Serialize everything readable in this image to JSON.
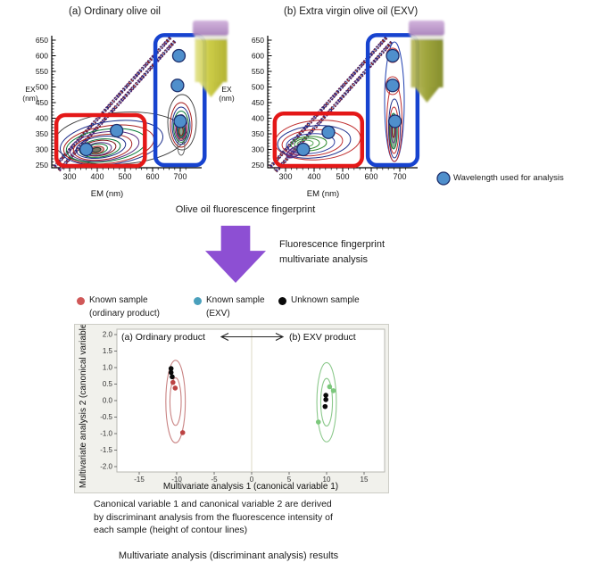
{
  "colors": {
    "region_red": "#e41818",
    "region_blue": "#1743cf",
    "analysis_marker_fill": "#4f8fcc",
    "analysis_marker_stroke": "#1c2e6b",
    "arrow_purple": "#8d4fd3",
    "known_ordinary_marker": "#bc4343",
    "known_ordinary_legend": "#d05858",
    "known_exv_marker": "#7cc87c",
    "known_exv_legend": "#4aa0bc",
    "unknown_marker": "#0a0a0a",
    "ellipse_ordinary": "#c98383",
    "ellipse_exv": "#8cc98c"
  },
  "top_figure": {
    "caption": "Olive oil fluorescence fingerprint",
    "wavelength_legend": "Wavelength used for analysis"
  },
  "process_arrow": {
    "label_lines": [
      "Fluorescence fingerprint",
      "multivariate analysis"
    ]
  },
  "captions": {
    "discriminant_note_lines": [
      "Canonical variable 1 and canonical variable 2 are derived",
      "by discriminant analysis from the fluorescence intensity of",
      "each sample (height of contour lines)"
    ],
    "result_caption": "Multivariate analysis (discriminant analysis) results"
  },
  "chart_data": [
    {
      "type": "heatmap",
      "subtype": "excitation-emission contour map",
      "title": "(a) Ordinary olive oil",
      "xlabel": "EM (nm)",
      "ylabel": [
        "EX",
        "(nm)"
      ],
      "xticks": [
        300,
        400,
        500,
        600,
        700
      ],
      "yticks": [
        650,
        600,
        550,
        500,
        450,
        400,
        350,
        300,
        250
      ],
      "xlim": [
        250,
        730
      ],
      "ylim": [
        250,
        665
      ],
      "diagonal_feature": "Rayleigh scatter line (EM = EX)",
      "analysis_points_nm": [
        [
          695,
          600
        ],
        [
          690,
          505
        ],
        [
          700,
          390
        ],
        [
          470,
          360
        ],
        [
          360,
          300
        ]
      ],
      "contour_features": [
        {
          "name": "low-wavelength-peak",
          "em_center": 420,
          "ex_center": 310,
          "em_range": [
            270,
            600
          ],
          "ex_range": [
            250,
            420
          ]
        },
        {
          "name": "chlorophyll-emission-peak",
          "em_center": 700,
          "ex_center": 385,
          "em_range": [
            640,
            710
          ],
          "ex_range": [
            300,
            470
          ]
        }
      ],
      "regions": [
        {
          "name": "low-wavelength-region",
          "color": "#e41818",
          "em": [
            252,
            572
          ],
          "ex": [
            247,
            410
          ]
        },
        {
          "name": "chlorophyll-region",
          "color": "#1743cf",
          "em": [
            610,
            788
          ],
          "ex": [
            250,
            666
          ]
        }
      ]
    },
    {
      "type": "heatmap",
      "subtype": "excitation-emission contour map",
      "title": "(b) Extra virgin olive oil (EXV)",
      "xlabel": "EM (nm)",
      "ylabel": [
        "EX",
        "(nm)"
      ],
      "xticks": [
        300,
        400,
        500,
        600,
        700
      ],
      "yticks": [
        650,
        600,
        550,
        500,
        450,
        400,
        350,
        300,
        250
      ],
      "xlim": [
        250,
        730
      ],
      "ylim": [
        250,
        665
      ],
      "diagonal_feature": "Rayleigh scatter line (EM = EX)",
      "analysis_points_nm": [
        [
          675,
          600
        ],
        [
          675,
          505
        ],
        [
          683,
          390
        ],
        [
          450,
          355
        ],
        [
          362,
          300
        ]
      ],
      "contour_features": [
        {
          "name": "low-wavelength-peak",
          "em_center": 395,
          "ex_center": 318,
          "em_range": [
            280,
            610
          ],
          "ex_range": [
            250,
            405
          ]
        },
        {
          "name": "chlorophyll-emission-peak",
          "em_center": 678,
          "ex_center": 360,
          "em_range": [
            640,
            700
          ],
          "ex_range": [
            250,
            645
          ]
        }
      ],
      "regions": [
        {
          "name": "low-wavelength-region",
          "color": "#e41818",
          "em": [
            262,
            568
          ],
          "ex": [
            247,
            415
          ]
        },
        {
          "name": "chlorophyll-region",
          "color": "#1743cf",
          "em": [
            588,
            762
          ],
          "ex": [
            250,
            666
          ]
        }
      ]
    },
    {
      "type": "scatter",
      "annotation_left": "(a) Ordinary product",
      "annotation_right": "(b) EXV product",
      "xlabel": "Multivariate analysis 1 (canonical variable 1)",
      "ylabel": "Multivariate analysis 2 (canonical variable 2)",
      "xticks": [
        -15,
        -10,
        -5,
        0,
        5,
        10,
        15
      ],
      "yticks": [
        2.0,
        1.5,
        1.0,
        0.5,
        0.0,
        -0.5,
        -1.0,
        -1.5,
        -2.0
      ],
      "xlim": [
        -17.8,
        17.8
      ],
      "ylim": [
        -2.2,
        2.2
      ],
      "legend": [
        {
          "label_lines": [
            "Known sample",
            "(ordinary product)"
          ],
          "color": "#d05858"
        },
        {
          "label_lines": [
            "Known sample",
            "(EXV)"
          ],
          "color": "#4aa0bc"
        },
        {
          "label_lines": [
            "Unknown sample"
          ],
          "color": "#0a0a0a"
        }
      ],
      "series": [
        {
          "name": "Known sample (ordinary product)",
          "color": "#bc4343",
          "points": [
            [
              -10.5,
              0.55
            ],
            [
              -10.2,
              0.38
            ],
            [
              -9.2,
              -0.97
            ]
          ]
        },
        {
          "name": "Known sample (EXV)",
          "color": "#7cc87c",
          "points": [
            [
              10.4,
              0.42
            ],
            [
              10.9,
              0.3
            ],
            [
              8.9,
              -0.65
            ]
          ]
        },
        {
          "name": "Unknown sample",
          "color": "#0a0a0a",
          "points": [
            [
              -10.75,
              0.97
            ],
            [
              -10.75,
              0.85
            ],
            [
              -10.6,
              0.72
            ],
            [
              9.9,
              0.16
            ],
            [
              9.9,
              0.03
            ],
            [
              9.8,
              -0.18
            ]
          ]
        }
      ],
      "ellipses": [
        {
          "group": "ordinary",
          "color": "#c98383",
          "cx": -10.15,
          "cy": -0.03,
          "rx": 1.3,
          "ry": 1.25
        },
        {
          "group": "ordinary",
          "color": "#c98383",
          "cx": -10.15,
          "cy": -0.03,
          "rx": 0.75,
          "ry": 0.72
        },
        {
          "group": "exv",
          "color": "#8cc98c",
          "cx": 10.0,
          "cy": -0.05,
          "rx": 1.3,
          "ry": 1.2
        },
        {
          "group": "exv",
          "color": "#8cc98c",
          "cx": 10.0,
          "cy": -0.05,
          "rx": 0.78,
          "ry": 0.72
        }
      ]
    }
  ]
}
